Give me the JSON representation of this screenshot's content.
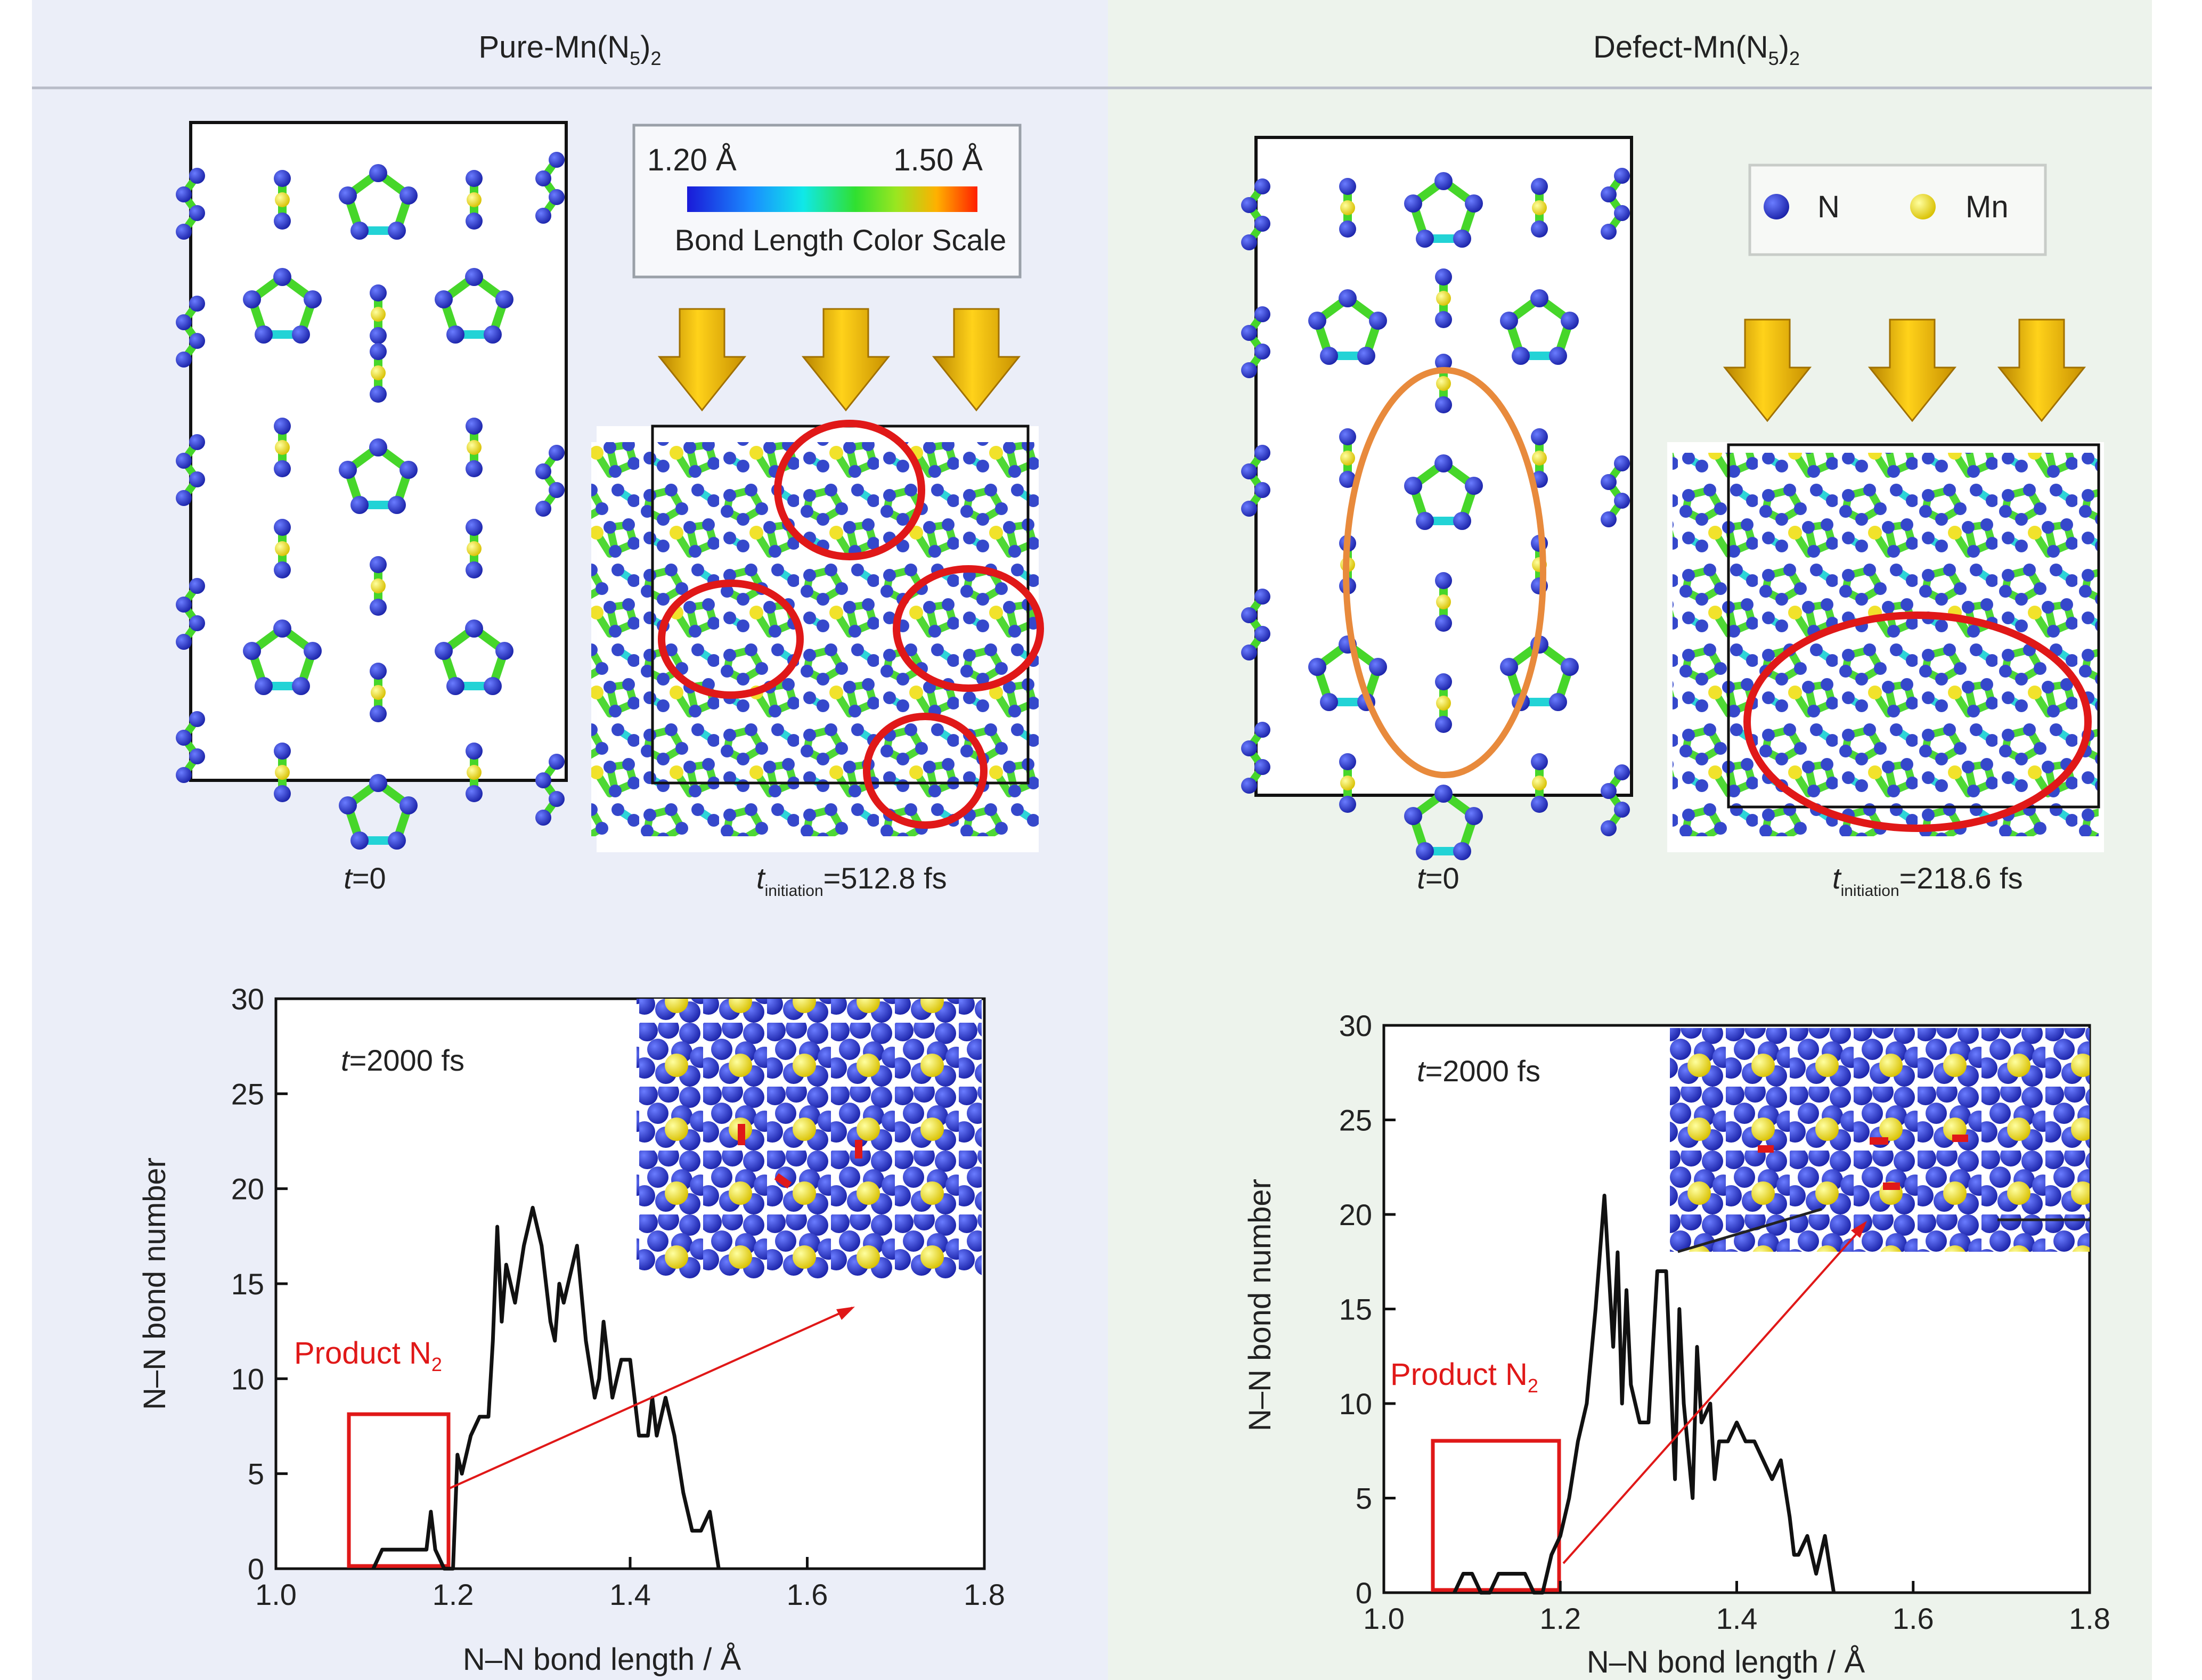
{
  "panels": {
    "left": {
      "title": "Pure-Mn(N",
      "title_sub": "5",
      "title_end": ")",
      "title_sub2": "2",
      "t0": "t",
      "t0_rest": "=0",
      "tinit": "t",
      "tinit_sub": "initiation",
      "tinit_rest": "=512.8 fs"
    },
    "right": {
      "title": "Defect-Mn(N",
      "title_sub": "5",
      "title_end": ")",
      "title_sub2": "2",
      "t0": "t",
      "t0_rest": "=0",
      "tinit": "t",
      "tinit_sub": "initiation",
      "tinit_rest": "=218.6 fs"
    }
  },
  "color_scale": {
    "min": "1.20 Å",
    "max": "1.50 Å",
    "label": "Bond Length Color Scale"
  },
  "legend": {
    "n": "N",
    "mn": "Mn"
  },
  "colors": {
    "panel_left_bg": "#ebeef8",
    "panel_right_bg": "#edf3ec",
    "bond": "#46d62a",
    "bond_short": "#22d3d6",
    "atom_n": "#2a3ec8",
    "atom_mn": "#f0e020",
    "highlight": "#e01818",
    "ellipse_orange": "#e88a3c",
    "arrow_gold": "#f2c200"
  },
  "chart_data": [
    {
      "type": "line",
      "annotation": "t=2000 fs",
      "annotation_t": "t",
      "annotation_rest": "=2000 fs",
      "product_label": "Product N",
      "product_sub": "2",
      "xlabel": "N–N bond length / Å",
      "ylabel": "N–N bond number",
      "xlim": [
        1.0,
        1.8
      ],
      "ylim": [
        0,
        30
      ],
      "xticks": [
        "1.0",
        "1.2",
        "1.4",
        "1.6",
        "1.8"
      ],
      "yticks": [
        "0",
        "5",
        "10",
        "15",
        "20",
        "25",
        "30"
      ],
      "x": [
        1.11,
        1.12,
        1.13,
        1.14,
        1.15,
        1.16,
        1.17,
        1.175,
        1.18,
        1.19,
        1.2,
        1.205,
        1.21,
        1.22,
        1.23,
        1.24,
        1.245,
        1.25,
        1.255,
        1.26,
        1.27,
        1.28,
        1.29,
        1.3,
        1.31,
        1.315,
        1.32,
        1.325,
        1.33,
        1.34,
        1.35,
        1.36,
        1.365,
        1.37,
        1.38,
        1.39,
        1.4,
        1.41,
        1.42,
        1.425,
        1.43,
        1.44,
        1.45,
        1.46,
        1.47,
        1.48,
        1.49,
        1.5
      ],
      "y": [
        0,
        1,
        1,
        1,
        1,
        1,
        1,
        3,
        1,
        0,
        0,
        6,
        5,
        7,
        8,
        8,
        12,
        18,
        13,
        16,
        14,
        17,
        19,
        17,
        13,
        12,
        15,
        14,
        15,
        17,
        12,
        9,
        10,
        13,
        9,
        11,
        11,
        7,
        7,
        9,
        7,
        9,
        7,
        4,
        2,
        2,
        3,
        0
      ]
    },
    {
      "type": "line",
      "annotation": "t=2000 fs",
      "annotation_t": "t",
      "annotation_rest": "=2000 fs",
      "product_label": "Product N",
      "product_sub": "2",
      "xlabel": "N–N bond length / Å",
      "ylabel": "N–N bond number",
      "xlim": [
        1.0,
        1.8
      ],
      "ylim": [
        0,
        30
      ],
      "xticks": [
        "1.0",
        "1.2",
        "1.4",
        "1.6",
        "1.8"
      ],
      "yticks": [
        "0",
        "5",
        "10",
        "15",
        "20",
        "25",
        "30"
      ],
      "x": [
        1.08,
        1.09,
        1.1,
        1.11,
        1.12,
        1.13,
        1.14,
        1.15,
        1.16,
        1.17,
        1.18,
        1.19,
        1.2,
        1.21,
        1.22,
        1.23,
        1.24,
        1.25,
        1.26,
        1.265,
        1.27,
        1.275,
        1.28,
        1.29,
        1.3,
        1.31,
        1.32,
        1.33,
        1.335,
        1.34,
        1.35,
        1.355,
        1.36,
        1.37,
        1.375,
        1.38,
        1.39,
        1.4,
        1.41,
        1.42,
        1.43,
        1.44,
        1.45,
        1.46,
        1.465,
        1.47,
        1.48,
        1.49,
        1.5,
        1.51
      ],
      "y": [
        0,
        1,
        1,
        0,
        0,
        1,
        1,
        1,
        1,
        0,
        0,
        2,
        3,
        5,
        8,
        10,
        15,
        21,
        13,
        18,
        10,
        16,
        11,
        9,
        9,
        17,
        17,
        6,
        15,
        10,
        5,
        13,
        9,
        10,
        6,
        8,
        8,
        9,
        8,
        8,
        7,
        6,
        7,
        4,
        2,
        2,
        3,
        1,
        3,
        0
      ]
    }
  ]
}
